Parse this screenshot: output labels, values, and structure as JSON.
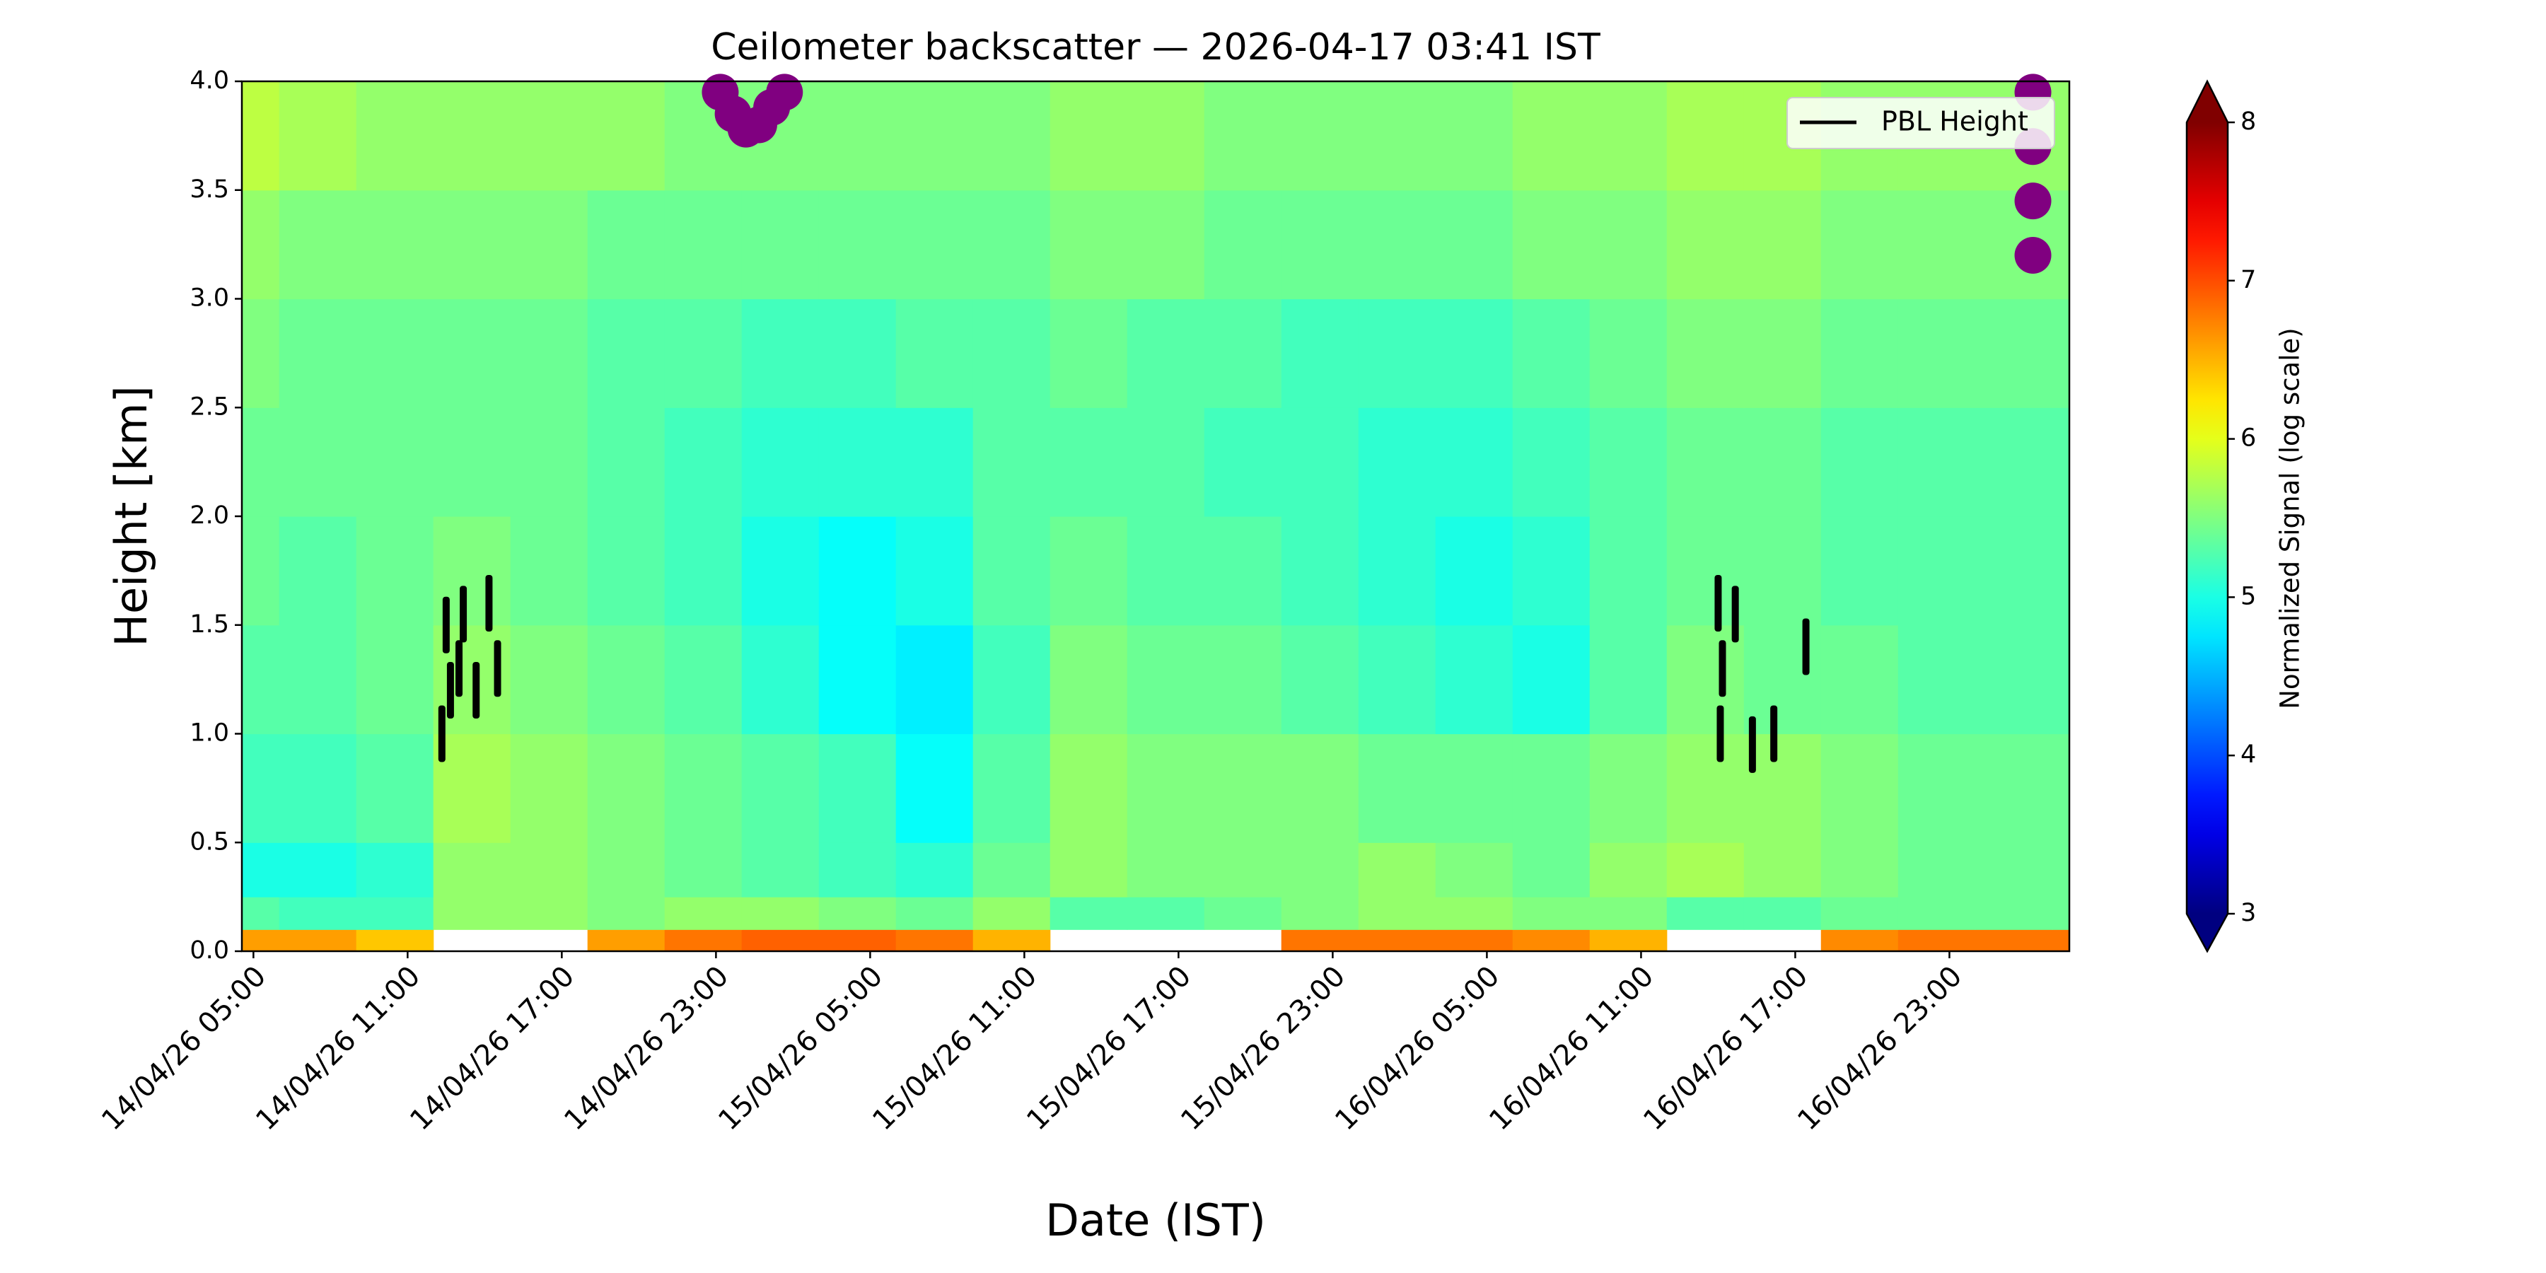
{
  "chart_data": {
    "type": "heatmap",
    "title": "Ceilometer backscatter — 2026-04-17 03:41 IST",
    "xlabel": "Date (IST)",
    "ylabel": "Height [km]",
    "xlim": [
      "14/04/26 04:33",
      "17/04/26 03:40"
    ],
    "xticks": [
      "14/04/26 05:00",
      "14/04/26 11:00",
      "14/04/26 17:00",
      "14/04/26 23:00",
      "15/04/26 05:00",
      "15/04/26 11:00",
      "15/04/26 17:00",
      "15/04/26 23:00",
      "16/04/26 05:00",
      "16/04/26 11:00",
      "16/04/26 17:00",
      "16/04/26 23:00"
    ],
    "ylim": [
      0,
      4
    ],
    "yticks": [
      {
        "value": 0,
        "label": "0.0"
      },
      0.5,
      {
        "value": 1,
        "label": "1.0"
      },
      1.5,
      {
        "value": 2,
        "label": "2.0"
      },
      2.5,
      {
        "value": 3,
        "label": "3.0"
      },
      3.5,
      {
        "value": 4,
        "label": "4.0"
      }
    ],
    "xbins": [
      "14/04/26 04:33",
      "14/04/26 06:00",
      "14/04/26 09:00",
      "14/04/26 12:00",
      "14/04/26 15:00",
      "14/04/26 18:00",
      "14/04/26 21:00",
      "15/04/26 00:00",
      "15/04/26 03:00",
      "15/04/26 06:00",
      "15/04/26 09:00",
      "15/04/26 12:00",
      "15/04/26 15:00",
      "15/04/26 18:00",
      "15/04/26 21:00",
      "16/04/26 00:00",
      "16/04/26 03:00",
      "16/04/26 06:00",
      "16/04/26 09:00",
      "16/04/26 12:00",
      "16/04/26 15:00",
      "16/04/26 18:00",
      "16/04/26 21:00",
      "17/04/26 00:00",
      "17/04/26 03:00",
      "17/04/26 03:40"
    ],
    "ybins": [
      0,
      0.1,
      0.25,
      0.5,
      1.0,
      1.5,
      2.0,
      2.5,
      3.0,
      3.5,
      4.0
    ],
    "z": [
      [
        6.6,
        6.6,
        6.4,
        null,
        null,
        6.6,
        6.8,
        6.9,
        6.9,
        6.8,
        6.5,
        null,
        null,
        null,
        6.8,
        6.8,
        6.8,
        6.7,
        6.5,
        null,
        null,
        6.7,
        6.8,
        6.8,
        6.8
      ],
      [
        5.3,
        5.2,
        5.2,
        5.6,
        5.6,
        5.5,
        5.6,
        5.6,
        5.5,
        5.4,
        5.6,
        5.3,
        5.3,
        5.4,
        5.5,
        5.6,
        5.6,
        5.5,
        5.5,
        5.3,
        5.3,
        5.4,
        5.4,
        5.4,
        5.4
      ],
      [
        5.0,
        5.0,
        5.1,
        5.6,
        5.6,
        5.5,
        5.4,
        5.3,
        5.2,
        5.1,
        5.4,
        5.6,
        5.5,
        5.5,
        5.5,
        5.6,
        5.5,
        5.4,
        5.6,
        5.7,
        5.6,
        5.5,
        5.4,
        5.4,
        5.4
      ],
      [
        5.2,
        5.2,
        5.3,
        5.7,
        5.6,
        5.5,
        5.4,
        5.3,
        5.2,
        4.9,
        5.3,
        5.6,
        5.5,
        5.5,
        5.5,
        5.4,
        5.4,
        5.4,
        5.5,
        5.6,
        5.6,
        5.5,
        5.4,
        5.4,
        5.4
      ],
      [
        5.3,
        5.3,
        5.4,
        5.6,
        5.5,
        5.4,
        5.3,
        5.1,
        4.9,
        4.8,
        5.2,
        5.5,
        5.4,
        5.4,
        5.3,
        5.2,
        5.1,
        5.0,
        5.3,
        5.5,
        5.4,
        5.4,
        5.3,
        5.3,
        5.3
      ],
      [
        5.4,
        5.3,
        5.4,
        5.5,
        5.4,
        5.3,
        5.2,
        5.0,
        4.9,
        5.0,
        5.3,
        5.4,
        5.3,
        5.3,
        5.2,
        5.1,
        5.0,
        5.1,
        5.3,
        5.4,
        5.4,
        5.3,
        5.3,
        5.3,
        5.3
      ],
      [
        5.4,
        5.4,
        5.4,
        5.4,
        5.4,
        5.3,
        5.2,
        5.1,
        5.1,
        5.1,
        5.3,
        5.3,
        5.3,
        5.2,
        5.2,
        5.1,
        5.1,
        5.2,
        5.3,
        5.4,
        5.4,
        5.3,
        5.3,
        5.3,
        5.3
      ],
      [
        5.5,
        5.4,
        5.4,
        5.4,
        5.4,
        5.3,
        5.3,
        5.2,
        5.2,
        5.3,
        5.3,
        5.4,
        5.3,
        5.3,
        5.2,
        5.2,
        5.2,
        5.3,
        5.4,
        5.5,
        5.5,
        5.4,
        5.4,
        5.4,
        5.4
      ],
      [
        5.6,
        5.5,
        5.5,
        5.5,
        5.5,
        5.4,
        5.4,
        5.4,
        5.4,
        5.4,
        5.4,
        5.5,
        5.5,
        5.4,
        5.4,
        5.4,
        5.4,
        5.5,
        5.5,
        5.6,
        5.6,
        5.5,
        5.5,
        5.5,
        5.5
      ],
      [
        5.8,
        5.7,
        5.6,
        5.6,
        5.6,
        5.6,
        5.5,
        5.5,
        5.5,
        5.5,
        5.5,
        5.6,
        5.6,
        5.5,
        5.5,
        5.5,
        5.5,
        5.6,
        5.6,
        5.7,
        5.7,
        5.6,
        5.6,
        5.6,
        5.6
      ]
    ],
    "colorbar": {
      "label": "Normalized Signal (log scale)",
      "cmap": "jet",
      "lim": [
        3,
        8
      ],
      "ticks": [
        3,
        4,
        5,
        6,
        7,
        8
      ],
      "extend": "both"
    },
    "series": [
      {
        "name": "PBL Height",
        "color": "#000000",
        "x": [
          "14/04/26 12:20",
          "14/04/26 12:30",
          "14/04/26 12:40",
          "14/04/26 13:00",
          "14/04/26 13:10",
          "14/04/26 13:40",
          "14/04/26 14:10",
          "14/04/26 14:30",
          "16/04/26 14:00",
          "16/04/26 14:05",
          "16/04/26 14:10",
          "16/04/26 14:40",
          "16/04/26 15:20",
          "16/04/26 16:10",
          "16/04/26 17:25"
        ],
        "values": [
          1.0,
          1.5,
          1.2,
          1.3,
          1.55,
          1.2,
          1.6,
          1.3,
          1.6,
          1.0,
          1.3,
          1.55,
          0.95,
          1.0,
          1.4
        ]
      },
      {
        "color": "#800080",
        "x": [
          "14/04/26 23:10",
          "14/04/26 23:40",
          "15/04/26 00:10",
          "15/04/26 00:40",
          "15/04/26 01:10",
          "15/04/26 01:40",
          "17/04/26 02:15",
          "17/04/26 02:15",
          "17/04/26 02:15",
          "17/04/26 02:15"
        ],
        "values": [
          3.95,
          3.85,
          3.78,
          3.8,
          3.88,
          3.95,
          3.2,
          3.45,
          3.7,
          3.95
        ]
      }
    ],
    "legend": "upper right"
  }
}
